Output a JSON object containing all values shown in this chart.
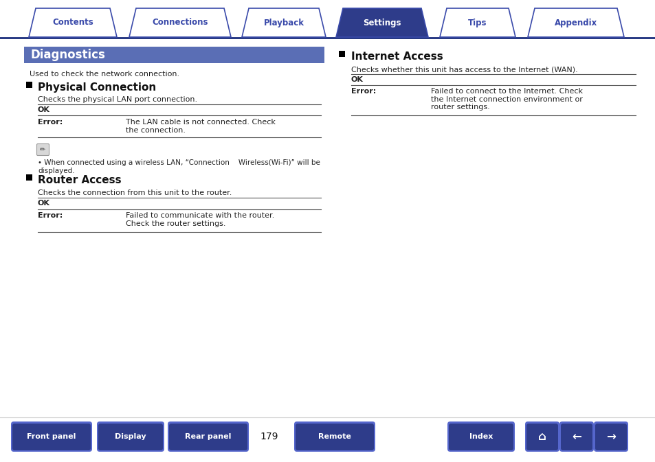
{
  "bg_color": "#ffffff",
  "tab_items": [
    "Contents",
    "Connections",
    "Playback",
    "Settings",
    "Tips",
    "Appendix"
  ],
  "tab_active": 3,
  "tab_color_active": "#2e3c8a",
  "tab_color_inactive": "#ffffff",
  "tab_text_color_active": "#ffffff",
  "tab_text_color_inactive": "#3a4aaa",
  "tab_border_color": "#3a4aaa",
  "tab_line_color": "#1a2d7c",
  "diag_header_bg": "#5a6eb5",
  "diag_header_text": "Diagnostics",
  "diag_header_text_color": "#ffffff",
  "body_text_color": "#222222",
  "section_title_color": "#111111",
  "intro_text": "Used to check the network connection.",
  "section1_title": "Physical Connection",
  "section1_desc": "Checks the physical LAN port connection.",
  "section1_ok": "OK",
  "section1_error_label": "Error:",
  "section1_error_text": "The LAN cable is not connected. Check\nthe connection.",
  "note_text": "When connected using a wireless LAN, “Connection    Wireless(Wi-Fi)” will be\ndisplayed.",
  "section2_title": "Router Access",
  "section2_desc": "Checks the connection from this unit to the router.",
  "section2_ok": "OK",
  "section2_error_label": "Error:",
  "section2_error_text": "Failed to communicate with the router.\nCheck the router settings.",
  "section3_title": "Internet Access",
  "section3_desc": "Checks whether this unit has access to the Internet (WAN).",
  "section3_ok": "OK",
  "section3_error_label": "Error:",
  "section3_error_text": "Failed to connect to the Internet. Check\nthe Internet connection environment or\nrouter settings.",
  "bottom_buttons": [
    "Front panel",
    "Display",
    "Rear panel",
    "Remote",
    "Index"
  ],
  "page_number": "179",
  "btn_color_dark": "#2e3c8a",
  "btn_color_light": "#5566cc",
  "btn_text_color": "#ffffff",
  "dark_line_color": "#555555"
}
